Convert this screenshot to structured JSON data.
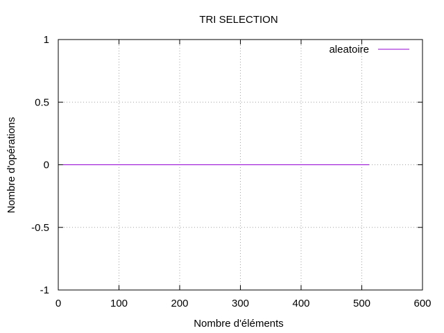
{
  "chart_data": {
    "type": "line",
    "title": "TRI SELECTION",
    "xlabel": "Nombre d'éléments",
    "ylabel": "Nombre d'opérations",
    "xlim": [
      0,
      600
    ],
    "ylim": [
      -1,
      1
    ],
    "x_ticks": [
      0,
      100,
      200,
      300,
      400,
      500,
      600
    ],
    "y_ticks": [
      -1,
      -0.5,
      0,
      0.5,
      1
    ],
    "x_tick_labels": [
      "0",
      "100",
      "200",
      "300",
      "400",
      "500",
      "600"
    ],
    "y_tick_labels": [
      "-1",
      "-0.5",
      "0",
      "0.5",
      "1"
    ],
    "grid": true,
    "legend_position": "top-right",
    "series": [
      {
        "name": "aleatoire",
        "color": "#9400d3",
        "x": [
          0,
          512
        ],
        "y": [
          0,
          0
        ]
      }
    ]
  }
}
